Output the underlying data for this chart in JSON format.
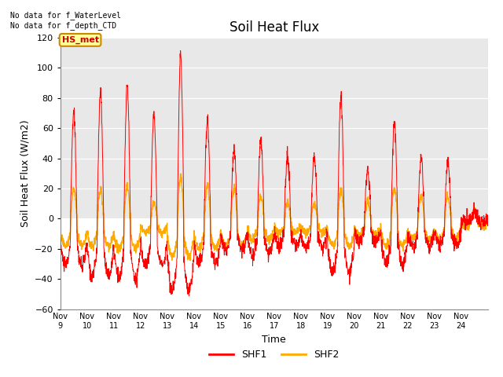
{
  "title": "Soil Heat Flux",
  "ylabel": "Soil Heat Flux (W/m2)",
  "xlabel": "Time",
  "ylim": [
    -60,
    120
  ],
  "yticks": [
    -60,
    -40,
    -20,
    0,
    20,
    40,
    60,
    80,
    100,
    120
  ],
  "xtick_labels": [
    "Nov 9",
    "Nov 10",
    "Nov 11",
    "Nov 12",
    "Nov 13",
    "Nov 14",
    "Nov 15",
    "Nov 16",
    "Nov 17",
    "Nov 18",
    "Nov 19",
    "Nov 20",
    "Nov 21",
    "Nov 22",
    "Nov 23",
    "Nov 24"
  ],
  "color_shf1": "#ff0000",
  "color_shf2": "#ffaa00",
  "annotation_text": "No data for f_WaterLevel\nNo data for f_depth_CTD",
  "hs_met_label": "HS_met",
  "hs_met_bg": "#ffff99",
  "hs_met_border": "#cc8800",
  "plot_bg_upper": "#e8e8e8",
  "plot_bg_lower": "#ffffff",
  "grid_color": "#ffffff",
  "fig_bg": "#ffffff",
  "title_fontsize": 12,
  "axis_fontsize": 9,
  "tick_fontsize": 8,
  "legend_labels": [
    "SHF1",
    "SHF2"
  ],
  "n_days": 16,
  "points_per_day": 144,
  "day_amps1": [
    70,
    84,
    88,
    68,
    108,
    65,
    45,
    51,
    41,
    42,
    80,
    33,
    65,
    40,
    38,
    5
  ],
  "day_amps2": [
    20,
    20,
    22,
    10,
    28,
    22,
    20,
    15,
    10,
    10,
    20,
    12,
    20,
    15,
    15,
    5
  ],
  "night_min1": -46,
  "night_min2": -22
}
